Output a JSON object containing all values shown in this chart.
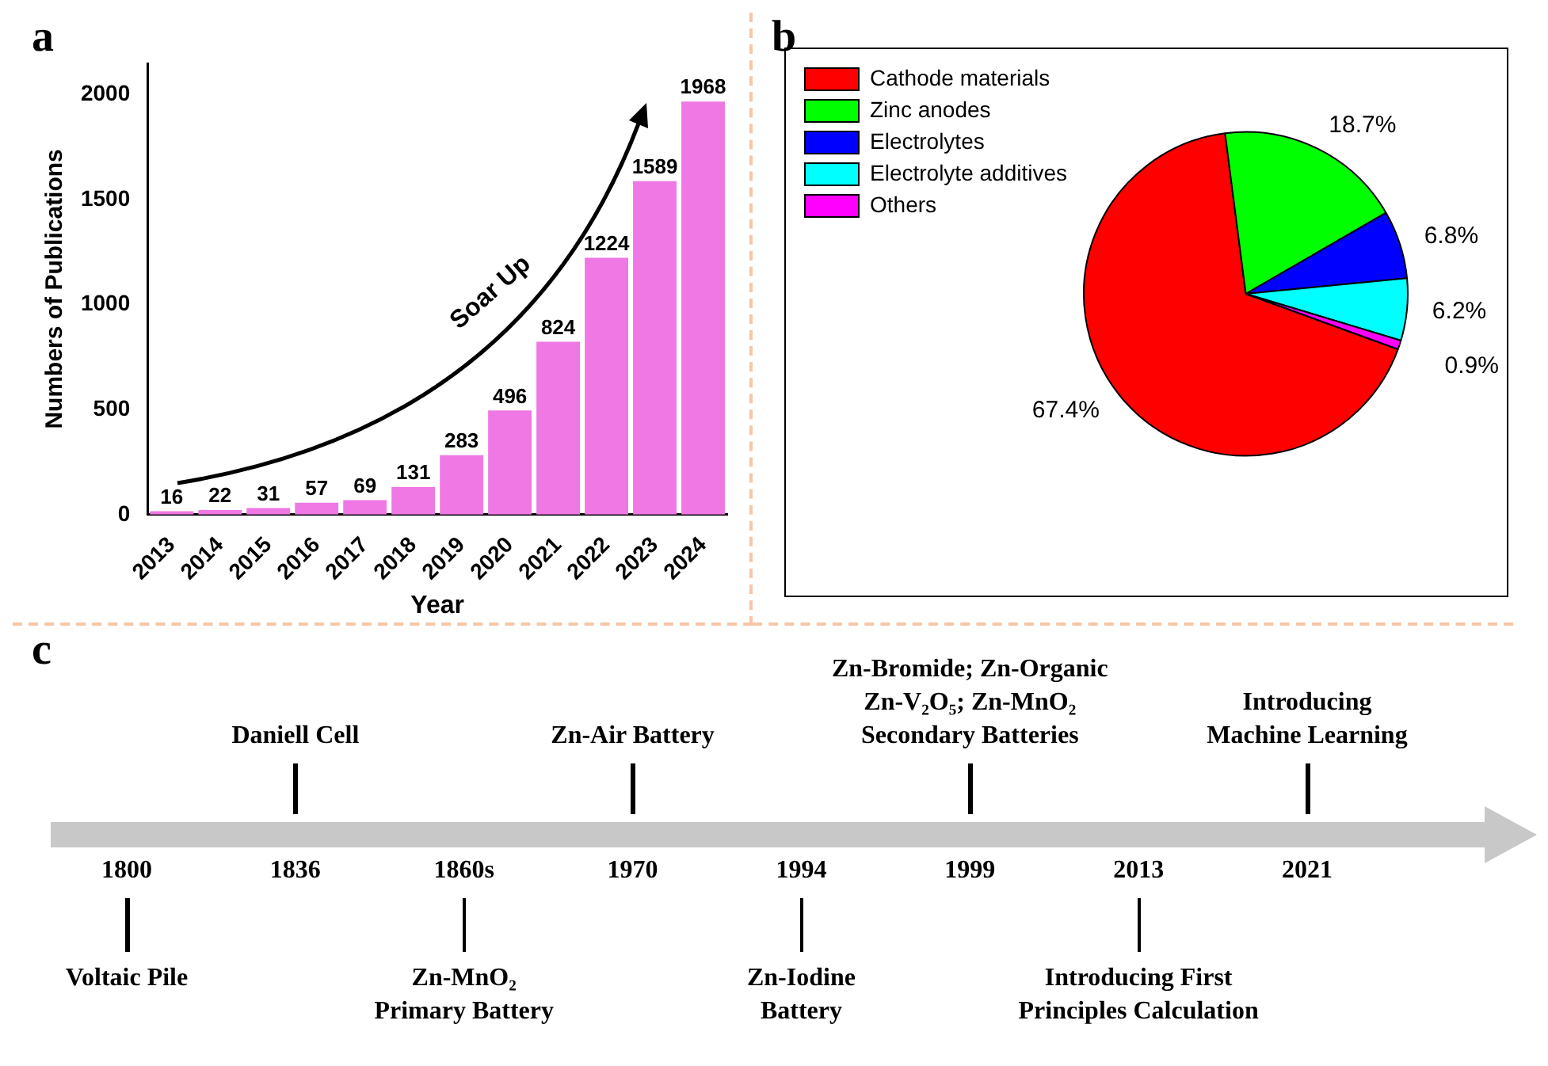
{
  "chart_data": [
    {
      "type": "bar",
      "title": "a",
      "categories": [
        "2013",
        "2014",
        "2015",
        "2016",
        "2017",
        "2018",
        "2019",
        "2020",
        "2021",
        "2022",
        "2023",
        "2024"
      ],
      "values": [
        16,
        22,
        31,
        57,
        69,
        131,
        283,
        496,
        824,
        1224,
        1589,
        1968
      ],
      "color": "#ef78e4",
      "xlabel": "Year",
      "ylabel": "Numbers of Publications",
      "ylim": [
        0,
        2150
      ],
      "yticks": [
        0,
        500,
        1000,
        1500,
        2000
      ],
      "data_labels": true,
      "grid": false,
      "legend": false,
      "annotations": [
        "Soar Up"
      ]
    },
    {
      "type": "pie",
      "title": "b",
      "categories": [
        "Cathode materials",
        "Zinc anodes",
        "Electrolytes",
        "Electrolyte additives",
        "Others"
      ],
      "values": [
        67.4,
        18.7,
        6.8,
        6.2,
        0.9
      ],
      "colors": [
        "#ff0000",
        "#00ff00",
        "#0000ff",
        "#00ffff",
        "#ff00ff"
      ],
      "value_labels": [
        "67.4%",
        "18.7%",
        "6.8%",
        "6.2%",
        "0.9%"
      ],
      "legend": "top left"
    },
    {
      "type": "other",
      "title": "c",
      "categories": [
        "1800",
        "1836",
        "1860s",
        "1970",
        "1994",
        "1999",
        "2013",
        "2021"
      ],
      "annotations": [
        "Voltaic Pile",
        "Daniell Cell",
        "Zn-MnO₂\nPrimary Battery",
        "Zn-Air Battery",
        "Zn-Iodine\nBattery",
        "Zn-Bromide; Zn-Organic\nZn-V₂O₅; Zn-MnO₂\nSecondary Batteries",
        "Introducing First\nPrinciples Calculation",
        "Introducing\nMachine Learning"
      ]
    }
  ]
}
